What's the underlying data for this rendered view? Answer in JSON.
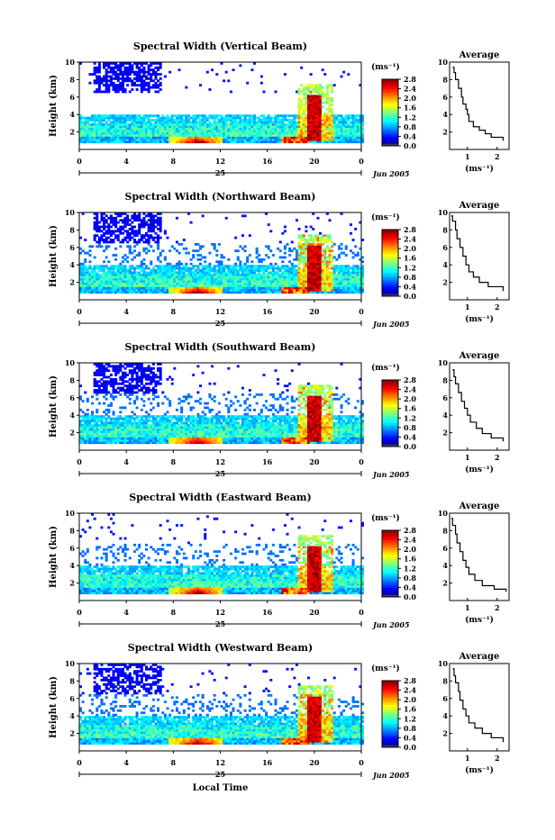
{
  "chart_data": {
    "panels": [
      {
        "type": "heatmap",
        "title": "Spectral Width (Vertical Beam)",
        "ylabel": "Height (km)",
        "x_ticks": [
          "0",
          "4",
          "8",
          "12",
          "16",
          "20",
          "0"
        ],
        "y_ticks": [
          "2",
          "4",
          "6",
          "8",
          "10"
        ],
        "xlim": [
          0,
          24
        ],
        "ylim": [
          0,
          10
        ],
        "day_label": "25",
        "date_label": "Jun 2005",
        "colorbar": {
          "unit": "(ms⁻¹)",
          "ticks": [
            "0.0",
            "0.4",
            "0.8",
            "1.2",
            "1.6",
            "2.0",
            "2.4",
            "2.8"
          ],
          "range": [
            0,
            2.8
          ]
        },
        "average": {
          "title": "Average",
          "xlabel": "(ms⁻¹)",
          "x_ticks": [
            "1",
            "2"
          ],
          "xlim": [
            0.4,
            2.4
          ],
          "y_ticks": [
            "2",
            "4",
            "6",
            "8",
            "10"
          ],
          "profile": [
            [
              2.2,
              1.0
            ],
            [
              1.8,
              1.4
            ],
            [
              1.6,
              1.8
            ],
            [
              1.4,
              2.2
            ],
            [
              1.2,
              2.6
            ],
            [
              1.05,
              3.2
            ],
            [
              1.0,
              4.0
            ],
            [
              0.95,
              4.6
            ],
            [
              0.85,
              5.2
            ],
            [
              0.8,
              6.0
            ],
            [
              0.7,
              7.0
            ],
            [
              0.6,
              8.0
            ],
            [
              0.55,
              8.8
            ],
            [
              0.5,
              9.4
            ]
          ]
        }
      },
      {
        "type": "heatmap",
        "title": "Spectral Width (Northward Beam)",
        "ylabel": "Height (km)",
        "x_ticks": [
          "0",
          "4",
          "8",
          "12",
          "16",
          "20",
          "0"
        ],
        "y_ticks": [
          "2",
          "4",
          "6",
          "8",
          "10"
        ],
        "xlim": [
          0,
          24
        ],
        "ylim": [
          0,
          10
        ],
        "day_label": "25",
        "date_label": "Jun 2005",
        "colorbar": {
          "unit": "(ms⁻¹)",
          "ticks": [
            "0.0",
            "0.4",
            "0.8",
            "1.2",
            "1.6",
            "2.0",
            "2.4",
            "2.8"
          ],
          "range": [
            0,
            2.8
          ]
        },
        "average": {
          "title": "Average",
          "xlabel": "(ms⁻¹)",
          "x_ticks": [
            "1",
            "2"
          ],
          "xlim": [
            0.4,
            2.4
          ],
          "y_ticks": [
            "2",
            "4",
            "6",
            "8",
            "10"
          ],
          "profile": [
            [
              2.2,
              1.0
            ],
            [
              1.7,
              1.5
            ],
            [
              1.4,
              2.0
            ],
            [
              1.2,
              2.6
            ],
            [
              1.05,
              3.2
            ],
            [
              0.95,
              4.0
            ],
            [
              0.85,
              5.0
            ],
            [
              0.75,
              6.0
            ],
            [
              0.65,
              7.0
            ],
            [
              0.6,
              8.0
            ],
            [
              0.5,
              9.0
            ],
            [
              0.45,
              9.6
            ]
          ]
        }
      },
      {
        "type": "heatmap",
        "title": "Spectral Width (Southward Beam)",
        "ylabel": "Height (km)",
        "x_ticks": [
          "0",
          "4",
          "8",
          "12",
          "16",
          "20",
          "0"
        ],
        "y_ticks": [
          "2",
          "4",
          "6",
          "8",
          "10"
        ],
        "xlim": [
          0,
          24
        ],
        "ylim": [
          0,
          10
        ],
        "day_label": "25",
        "date_label": "Jun 2005",
        "colorbar": {
          "unit": "(ms⁻¹)",
          "ticks": [
            "0.0",
            "0.4",
            "0.8",
            "1.2",
            "1.6",
            "2.0",
            "2.4",
            "2.8"
          ],
          "range": [
            0,
            2.8
          ]
        },
        "average": {
          "title": "Average",
          "xlabel": "(ms⁻¹)",
          "x_ticks": [
            "1",
            "2"
          ],
          "xlim": [
            0.4,
            2.4
          ],
          "y_ticks": [
            "2",
            "4",
            "6",
            "8",
            "10"
          ],
          "profile": [
            [
              2.2,
              1.0
            ],
            [
              1.8,
              1.4
            ],
            [
              1.5,
              1.9
            ],
            [
              1.3,
              2.5
            ],
            [
              1.1,
              3.2
            ],
            [
              1.0,
              4.0
            ],
            [
              0.9,
              4.8
            ],
            [
              0.8,
              5.6
            ],
            [
              0.7,
              6.6
            ],
            [
              0.6,
              7.6
            ],
            [
              0.55,
              8.4
            ],
            [
              0.5,
              9.2
            ]
          ]
        }
      },
      {
        "type": "heatmap",
        "title": "Spectral Width (Eastward Beam)",
        "ylabel": "Height (km)",
        "x_ticks": [
          "0",
          "4",
          "8",
          "12",
          "16",
          "20",
          "0"
        ],
        "y_ticks": [
          "2",
          "4",
          "6",
          "8",
          "10"
        ],
        "xlim": [
          0,
          24
        ],
        "ylim": [
          0,
          10
        ],
        "day_label": "25",
        "date_label": "Jun 2005",
        "colorbar": {
          "unit": "(ms⁻¹)",
          "ticks": [
            "0.0",
            "0.4",
            "0.8",
            "1.2",
            "1.6",
            "2.0",
            "2.4",
            "2.8"
          ],
          "range": [
            0,
            2.8
          ]
        },
        "average": {
          "title": "Average",
          "xlabel": "(ms⁻¹)",
          "x_ticks": [
            "1",
            "2"
          ],
          "xlim": [
            0.4,
            2.4
          ],
          "y_ticks": [
            "2",
            "4",
            "6",
            "8",
            "10"
          ],
          "profile": [
            [
              2.3,
              1.0
            ],
            [
              1.9,
              1.3
            ],
            [
              1.5,
              1.7
            ],
            [
              1.25,
              2.3
            ],
            [
              1.05,
              3.0
            ],
            [
              0.95,
              3.8
            ],
            [
              0.85,
              4.6
            ],
            [
              0.75,
              5.6
            ],
            [
              0.65,
              6.6
            ],
            [
              0.6,
              7.6
            ],
            [
              0.5,
              8.6
            ],
            [
              0.45,
              9.4
            ]
          ]
        }
      },
      {
        "type": "heatmap",
        "title": "Spectral Width (Westward Beam)",
        "ylabel": "Height (km)",
        "x_ticks": [
          "0",
          "4",
          "8",
          "12",
          "16",
          "20",
          "0"
        ],
        "y_ticks": [
          "2",
          "4",
          "6",
          "8",
          "10"
        ],
        "xlim": [
          0,
          24
        ],
        "ylim": [
          0,
          10
        ],
        "day_label": "25",
        "date_label": "Jun 2005",
        "colorbar": {
          "unit": "(ms⁻¹)",
          "ticks": [
            "0.0",
            "0.4",
            "0.8",
            "1.2",
            "1.6",
            "2.0",
            "2.4",
            "2.8"
          ],
          "range": [
            0,
            2.8
          ]
        },
        "average": {
          "title": "Average",
          "xlabel": "(ms⁻¹)",
          "x_ticks": [
            "1",
            "2"
          ],
          "xlim": [
            0.4,
            2.4
          ],
          "y_ticks": [
            "2",
            "4",
            "6",
            "8",
            "10"
          ],
          "profile": [
            [
              2.2,
              1.0
            ],
            [
              1.8,
              1.5
            ],
            [
              1.5,
              2.0
            ],
            [
              1.25,
              2.6
            ],
            [
              1.05,
              3.2
            ],
            [
              0.95,
              4.0
            ],
            [
              0.85,
              4.8
            ],
            [
              0.75,
              5.8
            ],
            [
              0.7,
              6.8
            ],
            [
              0.6,
              7.8
            ],
            [
              0.55,
              8.6
            ],
            [
              0.5,
              9.4
            ]
          ]
        }
      }
    ],
    "xlabel": "Local Time"
  }
}
